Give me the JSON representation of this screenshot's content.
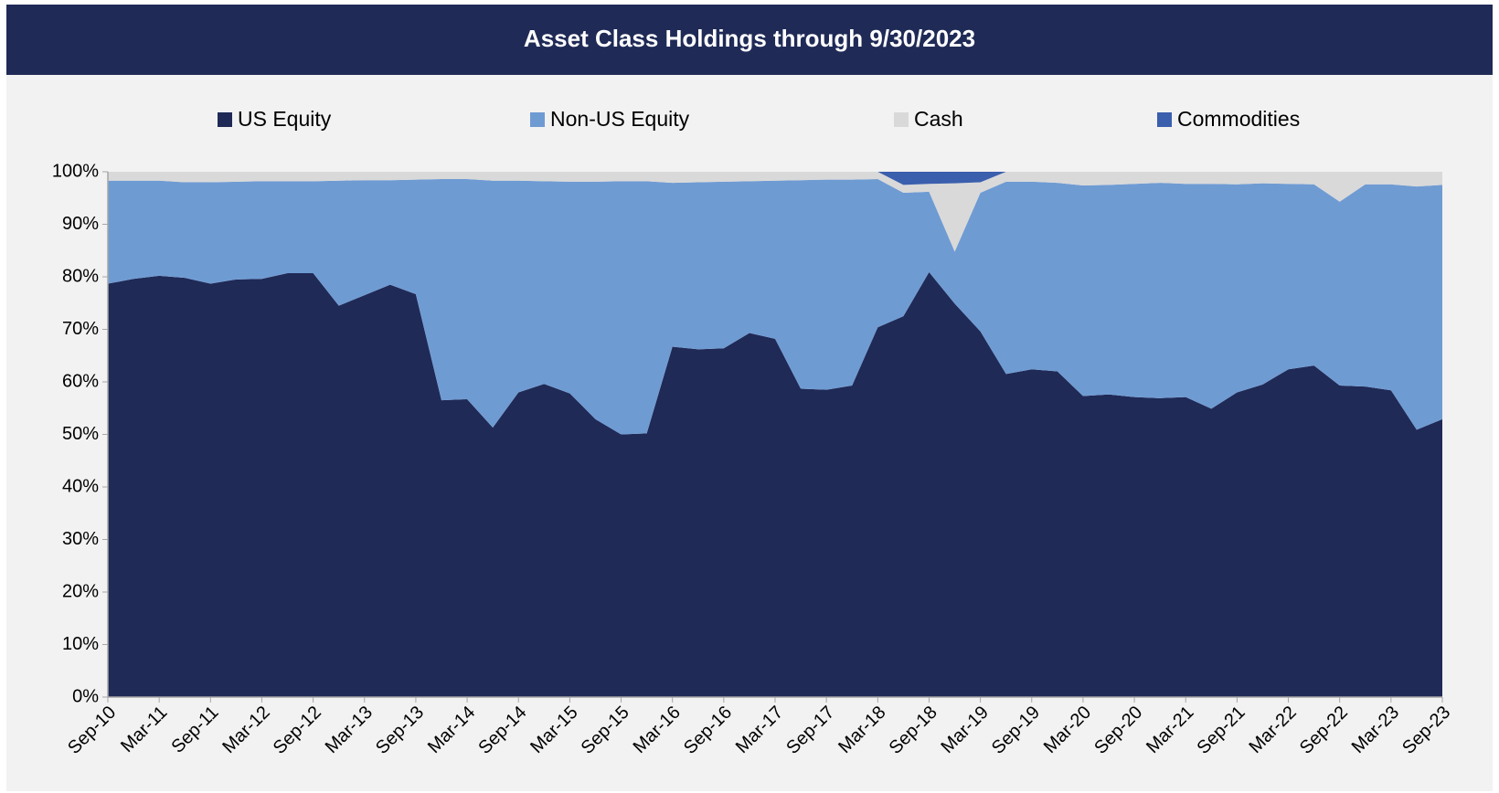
{
  "chart_data": {
    "type": "stacked_area",
    "title": "Asset Class Holdings through 9/30/2023",
    "categories": [
      "Sep-10",
      null,
      "Mar-11",
      null,
      "Sep-11",
      null,
      "Mar-12",
      null,
      "Sep-12",
      null,
      "Mar-13",
      null,
      "Sep-13",
      null,
      "Mar-14",
      null,
      "Sep-14",
      null,
      "Mar-15",
      null,
      "Sep-15",
      null,
      "Mar-16",
      null,
      "Sep-16",
      null,
      "Mar-17",
      null,
      "Sep-17",
      null,
      "Mar-18",
      null,
      "Sep-18",
      null,
      "Mar-19",
      null,
      "Sep-19",
      null,
      "Mar-20",
      null,
      "Sep-20",
      null,
      "Mar-21",
      null,
      "Sep-21",
      null,
      "Mar-22",
      null,
      "Sep-22",
      null,
      "Mar-23",
      null,
      "Sep-23"
    ],
    "series": [
      {
        "name": "US Equity",
        "color": "#1f2a56",
        "values": [
          78.7,
          79.6,
          80.2,
          79.8,
          78.7,
          79.5,
          79.6,
          80.7,
          80.7,
          74.5,
          76.5,
          78.5,
          76.7,
          56.5,
          56.7,
          51.3,
          58.0,
          59.6,
          57.8,
          52.9,
          50.0,
          50.2,
          66.7,
          66.2,
          66.4,
          69.3,
          68.2,
          58.7,
          58.5,
          59.3,
          70.4,
          72.5,
          80.9,
          74.9,
          69.6,
          61.5,
          62.4,
          62.0,
          57.3,
          57.6,
          57.1,
          56.9,
          57.1,
          54.9,
          58.0,
          59.5,
          62.4,
          63.1,
          59.3,
          59.1,
          58.4,
          50.9,
          52.9
        ]
      },
      {
        "name": "Non-US Equity",
        "color": "#6f9bd3",
        "values": [
          19.6,
          18.7,
          18.1,
          18.2,
          19.3,
          18.6,
          18.6,
          17.5,
          17.5,
          23.8,
          21.9,
          19.9,
          21.8,
          42.1,
          41.9,
          47.0,
          40.3,
          38.6,
          40.3,
          45.2,
          48.2,
          48.0,
          31.2,
          31.8,
          31.7,
          28.9,
          30.1,
          39.7,
          40.0,
          39.2,
          28.2,
          23.5,
          15.3,
          9.9,
          26.4,
          36.6,
          35.7,
          35.9,
          40.1,
          39.9,
          40.6,
          41.0,
          40.6,
          42.8,
          39.6,
          38.3,
          35.3,
          34.5,
          35.0,
          38.5,
          39.2,
          46.3,
          44.6
        ]
      },
      {
        "name": "Cash",
        "color": "#d9d9d9",
        "values": [
          1.7,
          1.7,
          1.7,
          2.0,
          2.0,
          1.9,
          1.8,
          1.8,
          1.8,
          1.7,
          1.6,
          1.6,
          1.5,
          1.4,
          1.4,
          1.7,
          1.7,
          1.8,
          1.9,
          1.9,
          1.8,
          1.8,
          2.1,
          2.0,
          1.9,
          1.8,
          1.7,
          1.6,
          1.5,
          1.5,
          1.4,
          1.5,
          1.5,
          13.0,
          2.0,
          1.9,
          1.9,
          2.1,
          2.6,
          2.5,
          2.3,
          2.1,
          2.3,
          2.3,
          2.4,
          2.2,
          2.3,
          2.4,
          5.7,
          2.4,
          2.4,
          2.8,
          2.5
        ]
      },
      {
        "name": "Commodities",
        "color": "#3a5fad",
        "values": [
          0,
          0,
          0,
          0,
          0,
          0,
          0,
          0,
          0,
          0,
          0,
          0,
          0,
          0,
          0,
          0,
          0,
          0,
          0,
          0,
          0,
          0,
          0,
          0,
          0,
          0,
          0,
          0,
          0,
          0,
          0,
          2.5,
          2.3,
          2.2,
          2.0,
          0,
          0,
          0,
          0,
          0,
          0,
          0,
          0,
          0,
          0,
          0,
          0,
          0,
          0,
          0,
          0,
          0,
          0
        ]
      }
    ],
    "ylim": [
      0,
      100
    ],
    "yticks": [
      {
        "value": 0,
        "label": "0%"
      },
      {
        "value": 10,
        "label": "10%"
      },
      {
        "value": 20,
        "label": "20%"
      },
      {
        "value": 30,
        "label": "30%"
      },
      {
        "value": 40,
        "label": "40%"
      },
      {
        "value": 50,
        "label": "50%"
      },
      {
        "value": 60,
        "label": "60%"
      },
      {
        "value": 70,
        "label": "70%"
      },
      {
        "value": 80,
        "label": "80%"
      },
      {
        "value": 90,
        "label": "90%"
      },
      {
        "value": 100,
        "label": "100%"
      }
    ],
    "legend": "top",
    "grid": false
  }
}
